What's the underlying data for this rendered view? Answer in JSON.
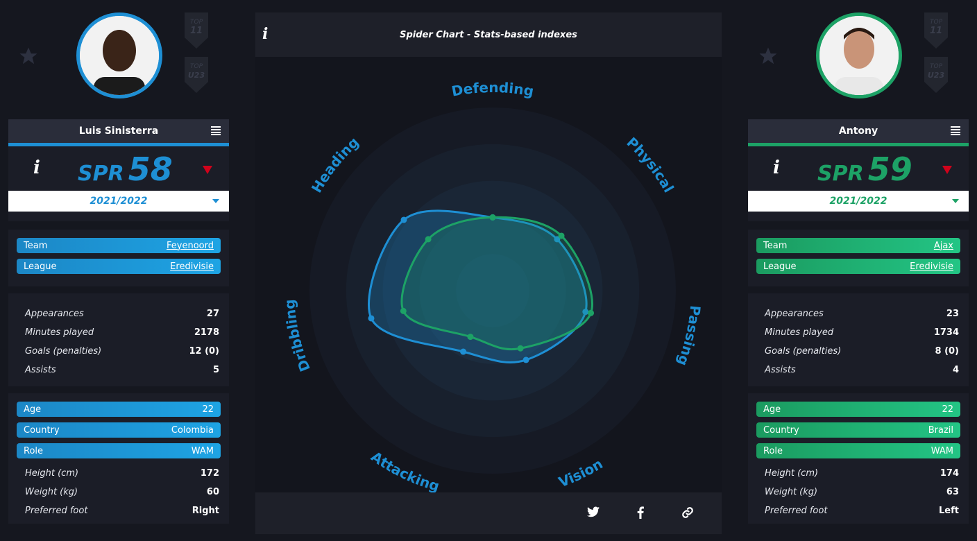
{
  "players": [
    {
      "name": "Luis Sinisterra",
      "info_label": "i",
      "spr_label": "SPR",
      "spr_value": "58",
      "season": "2021/2022",
      "team": {
        "label": "Team",
        "value": "Feyenoord"
      },
      "league": {
        "label": "League",
        "value": "Eredivisie"
      },
      "stats": [
        {
          "label": "Appearances",
          "value": "27"
        },
        {
          "label": "Minutes played",
          "value": "2178"
        },
        {
          "label": "Goals (penalties)",
          "value": "12 (0)"
        },
        {
          "label": "Assists",
          "value": "5"
        }
      ],
      "age": {
        "label": "Age",
        "value": "22"
      },
      "country": {
        "label": "Country",
        "value": "Colombia"
      },
      "role": {
        "label": "Role",
        "value": "WAM"
      },
      "bio": [
        {
          "label": "Height (cm)",
          "value": "172"
        },
        {
          "label": "Weight (kg)",
          "value": "60"
        },
        {
          "label": "Preferred foot",
          "value": "Right"
        }
      ],
      "color": "#1e8fd4"
    },
    {
      "name": "Antony",
      "info_label": "i",
      "spr_label": "SPR",
      "spr_value": "59",
      "season": "2021/2022",
      "team": {
        "label": "Team",
        "value": "Ajax"
      },
      "league": {
        "label": "League",
        "value": "Eredivisie"
      },
      "stats": [
        {
          "label": "Appearances",
          "value": "23"
        },
        {
          "label": "Minutes played",
          "value": "1734"
        },
        {
          "label": "Goals (penalties)",
          "value": "8 (0)"
        },
        {
          "label": "Assists",
          "value": "4"
        }
      ],
      "age": {
        "label": "Age",
        "value": "22"
      },
      "country": {
        "label": "Country",
        "value": "Brazil"
      },
      "role": {
        "label": "Role",
        "value": "WAM"
      },
      "bio": [
        {
          "label": "Height (cm)",
          "value": "174"
        },
        {
          "label": "Weight (kg)",
          "value": "63"
        },
        {
          "label": "Preferred foot",
          "value": "Left"
        }
      ],
      "color": "#1da266"
    }
  ],
  "badges": [
    "TOP 11",
    "TOP U23"
  ],
  "icons": {
    "favorite": "star-icon",
    "menu": "menu-icon",
    "trend": "down-triangle-icon",
    "dropdown": "chevron-down-icon",
    "share": [
      "twitter-icon",
      "facebook-icon",
      "link-icon"
    ]
  },
  "colors": {
    "accent_blue": "#1e8fd4",
    "accent_green": "#1da266",
    "trend_red": "#d0021b"
  },
  "center": {
    "info_label": "i",
    "title": "Spider Chart - Stats-based indexes"
  },
  "chart_data": {
    "type": "radar",
    "axes": [
      "Defending",
      "Physical",
      "Passing",
      "Vision",
      "Attacking",
      "Dribbling",
      "Heading"
    ],
    "max": 100,
    "series": [
      {
        "name": "Luis Sinisterra",
        "values": [
          40,
          45,
          52,
          42,
          37,
          68,
          62
        ]
      },
      {
        "name": "Antony",
        "values": [
          40,
          48,
          55,
          35,
          28,
          50,
          45
        ]
      }
    ]
  }
}
